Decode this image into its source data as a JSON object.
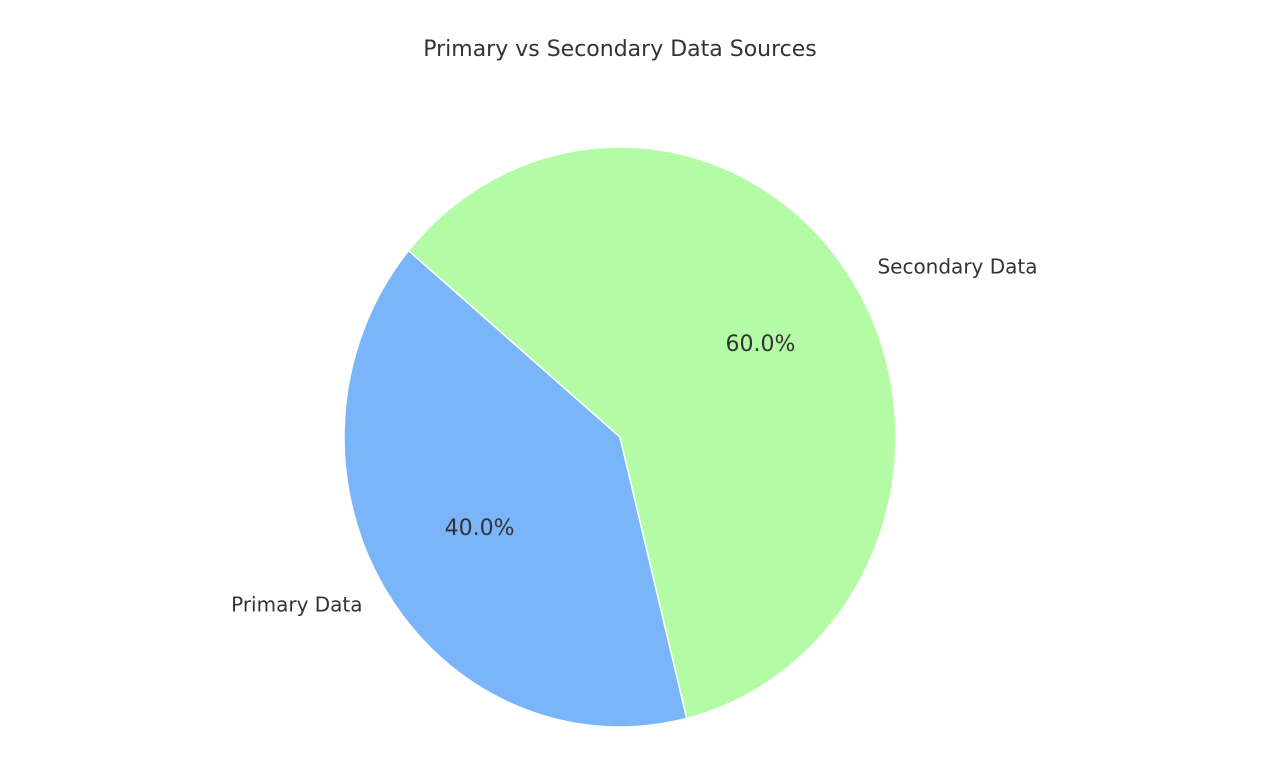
{
  "chart_data": {
    "type": "pie",
    "title": "Primary vs Secondary Data Sources",
    "categories": [
      "Primary Data",
      "Secondary Data"
    ],
    "values": [
      40,
      60
    ],
    "value_labels": [
      "40.0%",
      "60.0%"
    ],
    "colors": [
      "#7ab5fa",
      "#b3fba4"
    ],
    "startangle": 140
  }
}
